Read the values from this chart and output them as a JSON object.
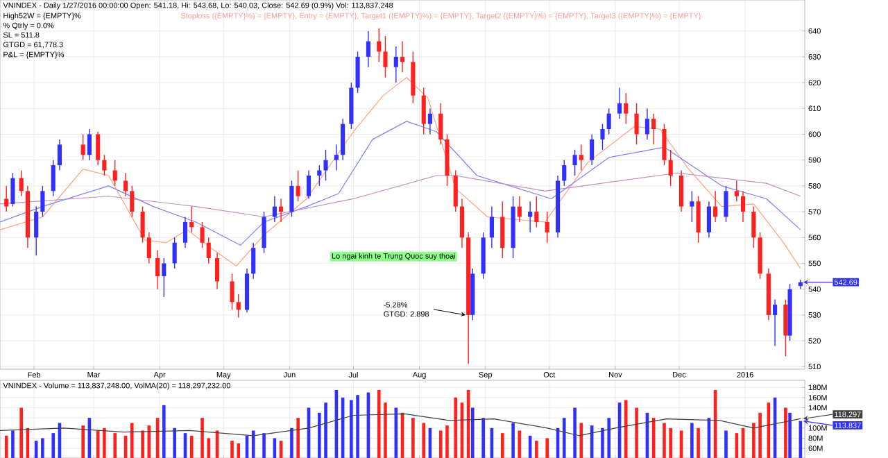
{
  "chart_data": [
    {
      "type": "candlestick",
      "title": "VNINDEX - Daily 1/27/2016 00:00:00 Open: 541.18, Hi: 543.68, Lo: 540.03, Close: 542.69 (0.9%) Vol: 113,837,248",
      "subtitle": "Stoploss ({EMPTY}%) = {EMPTY}, Entry = {EMPTY}, Target1 ({EMPTY}%) = {EMPTY}, Target2 ({EMPTY}%) = {EMPTY}, Target3 ({EMPTY}%) = {EMPTY}",
      "x": [
        "2015-01-19",
        "2015-01-22",
        "2015-01-26",
        "2015-01-29",
        "2015-02-02",
        "2015-02-05",
        "2015-02-10",
        "2015-02-13",
        "2015-02-24",
        "2015-02-27",
        "2015-03-03",
        "2015-03-06",
        "2015-03-11",
        "2015-03-16",
        "2015-03-19",
        "2015-03-24",
        "2015-03-27",
        "2015-03-31",
        "2015-04-03",
        "2015-04-08",
        "2015-04-13",
        "2015-04-16",
        "2015-04-21",
        "2015-04-24",
        "2015-04-28",
        "2015-05-05",
        "2015-05-08",
        "2015-05-12",
        "2015-05-15",
        "2015-05-20",
        "2015-05-25",
        "2015-05-28",
        "2015-06-02",
        "2015-06-05",
        "2015-06-10",
        "2015-06-15",
        "2015-06-18",
        "2015-06-23",
        "2015-06-26",
        "2015-06-30",
        "2015-07-03",
        "2015-07-08",
        "2015-07-13",
        "2015-07-16",
        "2015-07-21",
        "2015-07-24",
        "2015-07-29",
        "2015-08-03",
        "2015-08-06",
        "2015-08-11",
        "2015-08-14",
        "2015-08-18",
        "2015-08-21",
        "2015-08-24",
        "2015-08-26",
        "2015-08-31",
        "2015-09-04",
        "2015-09-09",
        "2015-09-14",
        "2015-09-17",
        "2015-09-22",
        "2015-09-25",
        "2015-09-30",
        "2015-10-05",
        "2015-10-08",
        "2015-10-13",
        "2015-10-16",
        "2015-10-21",
        "2015-10-26",
        "2015-10-29",
        "2015-11-03",
        "2015-11-06",
        "2015-11-11",
        "2015-11-16",
        "2015-11-19",
        "2015-11-24",
        "2015-11-27",
        "2015-12-02",
        "2015-12-07",
        "2015-12-10",
        "2015-12-15",
        "2015-12-18",
        "2015-12-23",
        "2015-12-28",
        "2015-12-31",
        "2016-01-05",
        "2016-01-08",
        "2016-01-12",
        "2016-01-15",
        "2016-01-20",
        "2016-01-22",
        "2016-01-27"
      ],
      "ohlc": [
        [
          575,
          580,
          570,
          572
        ],
        [
          573,
          585,
          572,
          583
        ],
        [
          583,
          586,
          576,
          578
        ],
        [
          578,
          580,
          556,
          560
        ],
        [
          560,
          572,
          553,
          570
        ],
        [
          570,
          580,
          568,
          578
        ],
        [
          578,
          590,
          576,
          588
        ],
        [
          588,
          598,
          586,
          596
        ],
        [
          596,
          600,
          590,
          592
        ],
        [
          592,
          602,
          590,
          600
        ],
        [
          600,
          601,
          588,
          590
        ],
        [
          590,
          592,
          584,
          586
        ],
        [
          586,
          590,
          580,
          582
        ],
        [
          582,
          585,
          576,
          578
        ],
        [
          578,
          580,
          568,
          570
        ],
        [
          570,
          572,
          558,
          560
        ],
        [
          560,
          562,
          550,
          552
        ],
        [
          552,
          555,
          540,
          545
        ],
        [
          545,
          552,
          537,
          550
        ],
        [
          550,
          560,
          548,
          558
        ],
        [
          558,
          568,
          556,
          566
        ],
        [
          566,
          572,
          562,
          564
        ],
        [
          564,
          566,
          556,
          558
        ],
        [
          558,
          560,
          550,
          552
        ],
        [
          552,
          554,
          540,
          543
        ],
        [
          543,
          546,
          532,
          535
        ],
        [
          535,
          538,
          529,
          532
        ],
        [
          532,
          548,
          531,
          546
        ],
        [
          546,
          558,
          544,
          556
        ],
        [
          556,
          570,
          554,
          568
        ],
        [
          568,
          576,
          566,
          572
        ],
        [
          572,
          575,
          566,
          570
        ],
        [
          570,
          582,
          568,
          580
        ],
        [
          580,
          586,
          574,
          576
        ],
        [
          576,
          586,
          575,
          584
        ],
        [
          584,
          588,
          580,
          586
        ],
        [
          586,
          594,
          582,
          590
        ],
        [
          590,
          596,
          586,
          592
        ],
        [
          592,
          606,
          590,
          604
        ],
        [
          604,
          620,
          602,
          618
        ],
        [
          618,
          632,
          616,
          630
        ],
        [
          630,
          640,
          626,
          636
        ],
        [
          636,
          641,
          628,
          632
        ],
        [
          632,
          638,
          622,
          626
        ],
        [
          626,
          634,
          620,
          630
        ],
        [
          630,
          636,
          624,
          628
        ],
        [
          628,
          632,
          612,
          615
        ],
        [
          615,
          618,
          600,
          604
        ],
        [
          604,
          610,
          600,
          608
        ],
        [
          608,
          612,
          596,
          598
        ],
        [
          598,
          600,
          580,
          584
        ],
        [
          584,
          586,
          570,
          572
        ],
        [
          572,
          575,
          556,
          560
        ],
        [
          560,
          562,
          511,
          530
        ],
        [
          530,
          548,
          528,
          546
        ],
        [
          546,
          562,
          544,
          560
        ],
        [
          560,
          572,
          556,
          568
        ],
        [
          568,
          574,
          552,
          556
        ],
        [
          556,
          576,
          552,
          572
        ],
        [
          572,
          576,
          566,
          568
        ],
        [
          568,
          574,
          562,
          570
        ],
        [
          570,
          576,
          564,
          566
        ],
        [
          566,
          570,
          558,
          562
        ],
        [
          562,
          584,
          560,
          582
        ],
        [
          582,
          590,
          580,
          588
        ],
        [
          588,
          594,
          584,
          592
        ],
        [
          592,
          596,
          586,
          590
        ],
        [
          590,
          600,
          588,
          598
        ],
        [
          598,
          604,
          594,
          602
        ],
        [
          602,
          610,
          600,
          608
        ],
        [
          608,
          618,
          606,
          612
        ],
        [
          612,
          616,
          604,
          608
        ],
        [
          608,
          612,
          596,
          600
        ],
        [
          600,
          610,
          598,
          606
        ],
        [
          606,
          608,
          596,
          602
        ],
        [
          602,
          604,
          588,
          590
        ],
        [
          590,
          594,
          580,
          584
        ],
        [
          584,
          586,
          570,
          572
        ],
        [
          572,
          578,
          566,
          574
        ],
        [
          574,
          576,
          558,
          562
        ],
        [
          562,
          574,
          560,
          572
        ],
        [
          572,
          578,
          566,
          568
        ],
        [
          568,
          580,
          566,
          578
        ],
        [
          578,
          582,
          574,
          576
        ],
        [
          576,
          578,
          566,
          570
        ],
        [
          570,
          572,
          556,
          560
        ],
        [
          560,
          562,
          544,
          546
        ],
        [
          546,
          548,
          528,
          530
        ],
        [
          530,
          536,
          518,
          534
        ],
        [
          534,
          536,
          514,
          522
        ],
        [
          522,
          542,
          520,
          540
        ],
        [
          541.18,
          543.68,
          540.03,
          542.69
        ]
      ],
      "colors": [
        "#ff2020",
        "#3030ff",
        "#ff2020",
        "#ff2020",
        "#3030ff",
        "#3030ff",
        "#3030ff",
        "#3030ff",
        "#ff2020",
        "#3030ff",
        "#ff2020",
        "#ff2020",
        "#ff2020",
        "#ff2020",
        "#ff2020",
        "#ff2020",
        "#ff2020",
        "#ff2020",
        "#3030ff",
        "#3030ff",
        "#3030ff",
        "#ff2020",
        "#ff2020",
        "#ff2020",
        "#ff2020",
        "#ff2020",
        "#ff2020",
        "#3030ff",
        "#3030ff",
        "#3030ff",
        "#3030ff",
        "#ff2020",
        "#3030ff",
        "#ff2020",
        "#3030ff",
        "#3030ff",
        "#3030ff",
        "#3030ff",
        "#3030ff",
        "#3030ff",
        "#3030ff",
        "#3030ff",
        "#ff2020",
        "#ff2020",
        "#3030ff",
        "#ff2020",
        "#ff2020",
        "#ff2020",
        "#3030ff",
        "#ff2020",
        "#ff2020",
        "#ff2020",
        "#ff2020",
        "#ff2020",
        "#3030ff",
        "#3030ff",
        "#3030ff",
        "#ff2020",
        "#3030ff",
        "#ff2020",
        "#3030ff",
        "#ff2020",
        "#ff2020",
        "#3030ff",
        "#3030ff",
        "#3030ff",
        "#ff2020",
        "#3030ff",
        "#3030ff",
        "#3030ff",
        "#3030ff",
        "#ff2020",
        "#ff2020",
        "#3030ff",
        "#ff2020",
        "#ff2020",
        "#ff2020",
        "#ff2020",
        "#3030ff",
        "#ff2020",
        "#3030ff",
        "#ff2020",
        "#3030ff",
        "#ff2020",
        "#ff2020",
        "#ff2020",
        "#ff2020",
        "#ff2020",
        "#3030ff",
        "#ff2020",
        "#3030ff",
        "#3030ff"
      ],
      "series": [
        {
          "type": "line",
          "color": "#ffa07a",
          "x": [
            "2015-01-16",
            "2015-02-05",
            "2015-02-24",
            "2015-03-08",
            "2015-03-25",
            "2015-04-04",
            "2015-04-14",
            "2015-04-25",
            "2015-05-07",
            "2015-05-20",
            "2015-06-09",
            "2015-07-01",
            "2015-07-15",
            "2015-07-26",
            "2015-08-05",
            "2015-08-18",
            "2015-09-02",
            "2015-09-29",
            "2015-10-19",
            "2015-11-10",
            "2015-11-22",
            "2015-12-05",
            "2015-12-21",
            "2016-01-05",
            "2016-01-19",
            "2016-01-27"
          ],
          "values": [
            563,
            568,
            586.5,
            584,
            559,
            558,
            563,
            556,
            549,
            561,
            575,
            601,
            615,
            622,
            614,
            579,
            568,
            566,
            589,
            603,
            602,
            587,
            572,
            573,
            558,
            548
          ]
        },
        {
          "type": "line",
          "color": "#8080ff",
          "x": [
            "2015-01-16",
            "2015-02-05",
            "2015-03-08",
            "2015-03-29",
            "2015-04-18",
            "2015-05-09",
            "2015-05-20",
            "2015-06-09",
            "2015-06-24",
            "2015-07-10",
            "2015-07-26",
            "2015-08-09",
            "2015-08-28",
            "2015-10-02",
            "2015-10-29",
            "2015-11-24",
            "2015-12-21",
            "2016-01-11",
            "2016-01-27"
          ],
          "values": [
            566,
            572,
            580,
            572,
            566,
            557,
            566,
            572,
            577,
            598,
            605,
            601,
            584,
            575,
            591,
            595,
            580,
            575,
            563
          ]
        },
        {
          "type": "line",
          "color": "#c090c0",
          "x": [
            "2015-01-16",
            "2015-03-08",
            "2015-04-18",
            "2015-05-20",
            "2015-07-01",
            "2015-08-09",
            "2015-08-18",
            "2015-09-29",
            "2015-11-30",
            "2016-01-11",
            "2016-01-27"
          ],
          "values": [
            573,
            576,
            572,
            568,
            575,
            584,
            584,
            578,
            585,
            581,
            576
          ]
        }
      ],
      "xlim": [
        "2015-01-16",
        "2016-01-29"
      ],
      "ylim": [
        509,
        652
      ],
      "xticks": [
        {
          "value": "2015-02-01",
          "label": "Feb"
        },
        {
          "value": "2015-03-01",
          "label": "Mar"
        },
        {
          "value": "2015-04-01",
          "label": "Apr"
        },
        {
          "value": "2015-05-01",
          "label": "May"
        },
        {
          "value": "2015-06-01",
          "label": "Jun"
        },
        {
          "value": "2015-07-01",
          "label": "Jul"
        },
        {
          "value": "2015-08-01",
          "label": "Aug"
        },
        {
          "value": "2015-09-01",
          "label": "Sep"
        },
        {
          "value": "2015-10-01",
          "label": "Oct"
        },
        {
          "value": "2015-11-01",
          "label": "Nov"
        },
        {
          "value": "2015-12-01",
          "label": "Dec"
        },
        {
          "value": "2016-01-01",
          "label": "2016"
        }
      ],
      "yticks": [
        510,
        520,
        530,
        540,
        550,
        560,
        570,
        580,
        590,
        600,
        610,
        620,
        630,
        640
      ],
      "grid": true,
      "annotations": [
        "542.69",
        "High52W = {EMPTY}%",
        "% Qtrly = 0.0%",
        "SL = 511.8",
        "GTGD = 61,778.3",
        "P&L = {EMPTY}%",
        "Lo ngai kinh te Trung Quoc suy thoai",
        {
          "text": "-5.28% GTGD: 2.898",
          "x": "2015-08-24",
          "y": 530
        }
      ]
    },
    {
      "type": "bar",
      "title": "VNINDEX - Volume = 113,837,248.00, VolMA(20) = 118,297,232.00",
      "series": [
        {
          "type": "bar",
          "x": [
            "2015-01-19",
            "2015-01-22",
            "2015-01-26",
            "2015-01-29",
            "2015-02-02",
            "2015-02-05",
            "2015-02-10",
            "2015-02-13",
            "2015-02-24",
            "2015-02-27",
            "2015-03-03",
            "2015-03-06",
            "2015-03-11",
            "2015-03-16",
            "2015-03-19",
            "2015-03-24",
            "2015-03-27",
            "2015-03-31",
            "2015-04-03",
            "2015-04-08",
            "2015-04-13",
            "2015-04-16",
            "2015-04-21",
            "2015-04-24",
            "2015-04-28",
            "2015-05-05",
            "2015-05-08",
            "2015-05-12",
            "2015-05-15",
            "2015-05-20",
            "2015-05-25",
            "2015-05-28",
            "2015-06-02",
            "2015-06-05",
            "2015-06-10",
            "2015-06-15",
            "2015-06-18",
            "2015-06-23",
            "2015-06-26",
            "2015-06-30",
            "2015-07-03",
            "2015-07-08",
            "2015-07-13",
            "2015-07-16",
            "2015-07-21",
            "2015-07-24",
            "2015-07-29",
            "2015-08-03",
            "2015-08-06",
            "2015-08-11",
            "2015-08-14",
            "2015-08-18",
            "2015-08-21",
            "2015-08-24",
            "2015-08-26",
            "2015-08-31",
            "2015-09-04",
            "2015-09-09",
            "2015-09-14",
            "2015-09-17",
            "2015-09-22",
            "2015-09-25",
            "2015-09-30",
            "2015-10-05",
            "2015-10-08",
            "2015-10-13",
            "2015-10-16",
            "2015-10-21",
            "2015-10-26",
            "2015-10-29",
            "2015-11-03",
            "2015-11-06",
            "2015-11-11",
            "2015-11-16",
            "2015-11-19",
            "2015-11-24",
            "2015-11-27",
            "2015-12-02",
            "2015-12-07",
            "2015-12-10",
            "2015-12-15",
            "2015-12-18",
            "2015-12-23",
            "2015-12-28",
            "2015-12-31",
            "2016-01-05",
            "2016-01-08",
            "2016-01-12",
            "2016-01-15",
            "2016-01-20",
            "2016-01-22",
            "2016-01-27"
          ],
          "values": [
            85,
            95,
            140,
            100,
            75,
            80,
            90,
            110,
            105,
            120,
            95,
            100,
            90,
            85,
            110,
            95,
            105,
            120,
            145,
            100,
            90,
            85,
            120,
            80,
            95,
            75,
            70,
            85,
            95,
            90,
            80,
            75,
            100,
            120,
            140,
            130,
            150,
            175,
            160,
            155,
            165,
            170,
            175,
            150,
            140,
            130,
            120,
            110,
            100,
            95,
            105,
            160,
            150,
            175,
            140,
            120,
            100,
            90,
            110,
            95,
            85,
            75,
            80,
            100,
            120,
            140,
            110,
            105,
            100,
            120,
            150,
            155,
            140,
            130,
            120,
            110,
            100,
            95,
            110,
            100,
            120,
            175,
            95,
            90,
            100,
            110,
            130,
            150,
            160,
            140,
            130,
            113.837
          ],
          "colors": [
            "#ff2020",
            "#3030ff",
            "#ff2020",
            "#ff2020",
            "#3030ff",
            "#3030ff",
            "#3030ff",
            "#3030ff",
            "#ff2020",
            "#3030ff",
            "#ff2020",
            "#ff2020",
            "#ff2020",
            "#ff2020",
            "#ff2020",
            "#ff2020",
            "#ff2020",
            "#ff2020",
            "#3030ff",
            "#3030ff",
            "#3030ff",
            "#ff2020",
            "#ff2020",
            "#ff2020",
            "#ff2020",
            "#ff2020",
            "#ff2020",
            "#3030ff",
            "#3030ff",
            "#3030ff",
            "#3030ff",
            "#ff2020",
            "#3030ff",
            "#ff2020",
            "#3030ff",
            "#3030ff",
            "#3030ff",
            "#3030ff",
            "#3030ff",
            "#3030ff",
            "#3030ff",
            "#3030ff",
            "#ff2020",
            "#ff2020",
            "#3030ff",
            "#ff2020",
            "#ff2020",
            "#ff2020",
            "#3030ff",
            "#ff2020",
            "#ff2020",
            "#ff2020",
            "#ff2020",
            "#ff2020",
            "#3030ff",
            "#3030ff",
            "#3030ff",
            "#ff2020",
            "#3030ff",
            "#ff2020",
            "#3030ff",
            "#ff2020",
            "#ff2020",
            "#3030ff",
            "#3030ff",
            "#3030ff",
            "#ff2020",
            "#3030ff",
            "#3030ff",
            "#3030ff",
            "#3030ff",
            "#ff2020",
            "#ff2020",
            "#3030ff",
            "#ff2020",
            "#ff2020",
            "#ff2020",
            "#ff2020",
            "#3030ff",
            "#ff2020",
            "#3030ff",
            "#ff2020",
            "#3030ff",
            "#ff2020",
            "#ff2020",
            "#ff2020",
            "#ff2020",
            "#ff2020",
            "#3030ff",
            "#ff2020",
            "#3030ff",
            "#3030ff"
          ]
        },
        {
          "type": "line",
          "color": "#404040",
          "x": [
            "2015-01-16",
            "2015-02-15",
            "2015-03-15",
            "2015-04-15",
            "2015-05-15",
            "2015-06-10",
            "2015-07-01",
            "2015-07-25",
            "2015-08-15",
            "2015-09-05",
            "2015-09-30",
            "2015-10-15",
            "2015-11-01",
            "2015-11-25",
            "2015-12-20",
            "2016-01-05",
            "2016-01-27"
          ],
          "values": [
            95,
            100,
            92,
            95,
            85,
            100,
            125,
            128,
            115,
            118,
            100,
            85,
            100,
            118,
            115,
            100,
            118.297
          ]
        }
      ],
      "xlim": [
        "2015-01-16",
        "2016-01-29"
      ],
      "ylim": [
        41,
        194
      ],
      "xticks": [
        {
          "value": "2015-02-01",
          "label": null
        },
        {
          "value": "2015-03-01",
          "label": null
        },
        {
          "value": "2015-04-01",
          "label": null
        },
        {
          "value": "2015-05-01",
          "label": null
        },
        {
          "value": "2015-06-01",
          "label": null
        },
        {
          "value": "2015-07-01",
          "label": null
        },
        {
          "value": "2015-08-01",
          "label": null
        },
        {
          "value": "2015-09-01",
          "label": null
        },
        {
          "value": "2015-10-01",
          "label": null
        },
        {
          "value": "2015-11-01",
          "label": null
        },
        {
          "value": "2015-12-01",
          "label": null
        },
        {
          "value": "2016-01-01",
          "label": null
        }
      ],
      "yticks": [
        {
          "value": 60,
          "label": "60M"
        },
        {
          "value": 80,
          "label": "80M"
        },
        {
          "value": 100,
          "label": "100M"
        },
        {
          "value": 120,
          "label": null
        },
        {
          "value": 140,
          "label": "140M"
        },
        {
          "value": 160,
          "label": "160M"
        },
        {
          "value": 180,
          "label": "180M"
        }
      ],
      "tick_labels": "y",
      "grid": true,
      "annotations": [
        {
          "text": "118.297",
          "x": "2016-01-27",
          "y": 118.297
        },
        {
          "text": "113.837",
          "x": "2016-01-27",
          "y": 113.837
        }
      ]
    }
  ]
}
